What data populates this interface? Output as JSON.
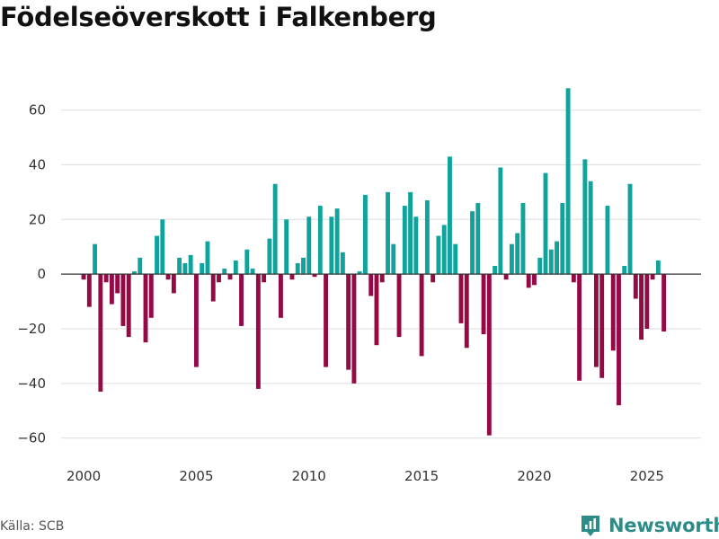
{
  "header": {
    "title": "Födelseöverskott i Falkenberg"
  },
  "footer": {
    "source": "Källa: SCB",
    "brand": "Newsworthy"
  },
  "colors": {
    "positive": "#10a39c",
    "negative": "#950a45",
    "brand": "#2c8c88",
    "grid": "#dddddd",
    "zero_line": "#333333"
  },
  "chart_data": {
    "type": "bar",
    "title": "Födelseöverskott i Falkenberg",
    "xlabel": "",
    "ylabel": "",
    "ylim": [
      -68,
      74
    ],
    "xlim": [
      1999.0,
      2027.4
    ],
    "yticks": [
      60,
      40,
      20,
      0,
      -20,
      -40,
      -60
    ],
    "ytick_labels": [
      "60",
      "40",
      "20",
      "0",
      "−20",
      "−40",
      "−60"
    ],
    "xticks": [
      2000,
      2005,
      2010,
      2015,
      2020,
      2025
    ],
    "xtick_labels": [
      "2000",
      "2005",
      "2010",
      "2015",
      "2020",
      "2025"
    ],
    "bar_step": 0.25,
    "grid": true,
    "series": [
      {
        "name": "Födelseöverskott",
        "x": [
          2000.0,
          2000.25,
          2000.5,
          2000.75,
          2001.0,
          2001.25,
          2001.5,
          2001.75,
          2002.0,
          2002.25,
          2002.5,
          2002.75,
          2003.0,
          2003.25,
          2003.5,
          2003.75,
          2004.0,
          2004.25,
          2004.5,
          2004.75,
          2005.0,
          2005.25,
          2005.5,
          2005.75,
          2006.0,
          2006.25,
          2006.5,
          2006.75,
          2007.0,
          2007.25,
          2007.5,
          2007.75,
          2008.0,
          2008.25,
          2008.5,
          2008.75,
          2009.0,
          2009.25,
          2009.5,
          2009.75,
          2010.0,
          2010.25,
          2010.5,
          2010.75,
          2011.0,
          2011.25,
          2011.5,
          2011.75,
          2012.0,
          2012.25,
          2012.5,
          2012.75,
          2013.0,
          2013.25,
          2013.5,
          2013.75,
          2014.0,
          2014.25,
          2014.5,
          2014.75,
          2015.0,
          2015.25,
          2015.5,
          2015.75,
          2016.0,
          2016.25,
          2016.5,
          2016.75,
          2017.0,
          2017.25,
          2017.5,
          2017.75,
          2018.0,
          2018.25,
          2018.5,
          2018.75,
          2019.0,
          2019.25,
          2019.5,
          2019.75,
          2020.0,
          2020.25,
          2020.5,
          2020.75,
          2021.0,
          2021.25,
          2021.5,
          2021.75,
          2022.0,
          2022.25,
          2022.5,
          2022.75,
          2023.0,
          2023.25,
          2023.5,
          2023.75,
          2024.0,
          2024.25,
          2024.5,
          2024.75,
          2025.0,
          2025.25,
          2025.5,
          2025.75
        ],
        "values": [
          -2,
          -12,
          11,
          -43,
          -3,
          -11,
          -7,
          -19,
          -23,
          1,
          6,
          -25,
          -16,
          14,
          20,
          -2,
          -7,
          6,
          4,
          7,
          -34,
          4,
          12,
          -10,
          -3,
          2,
          -2,
          5,
          -19,
          9,
          2,
          -42,
          -3,
          13,
          33,
          -16,
          20,
          -2,
          4,
          6,
          21,
          -1,
          25,
          -34,
          21,
          24,
          8,
          -35,
          -40,
          1,
          29,
          -8,
          -26,
          -3,
          30,
          11,
          -23,
          25,
          30,
          21,
          -30,
          27,
          -3,
          14,
          18,
          43,
          11,
          -18,
          -27,
          23,
          26,
          -22,
          -59,
          3,
          39,
          -2,
          11,
          15,
          26,
          -5,
          -4,
          6,
          37,
          9,
          12,
          26,
          68,
          -3,
          -39,
          42,
          34,
          -34,
          -38,
          25,
          -28,
          -48,
          3,
          33,
          -9,
          -24,
          -20,
          -2,
          5,
          -21
        ]
      }
    ]
  }
}
